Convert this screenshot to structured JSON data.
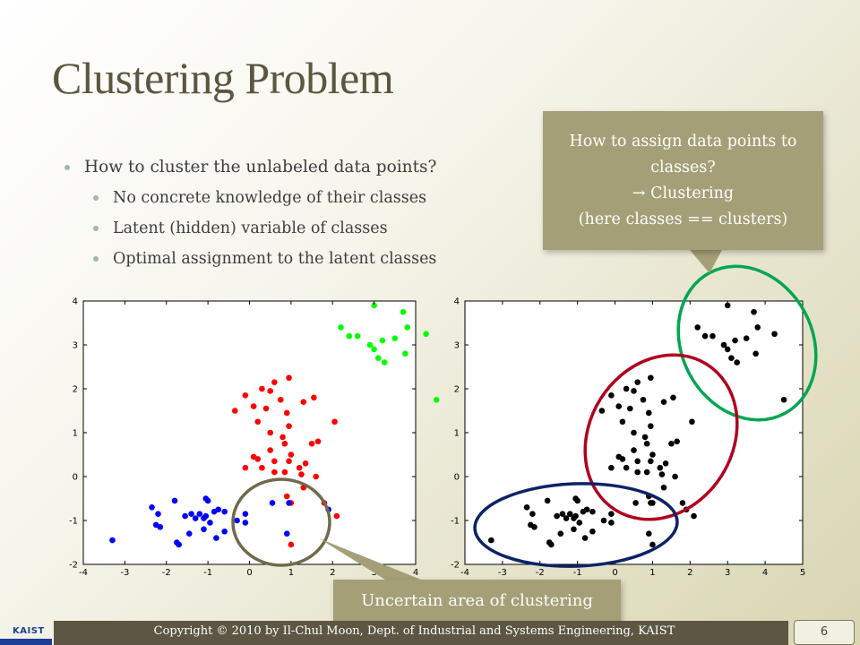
{
  "slide": {
    "title": "Clustering Problem",
    "bullets": [
      {
        "level": 1,
        "text": "How to cluster the unlabeled data points?"
      },
      {
        "level": 2,
        "text": "No concrete knowledge of their classes"
      },
      {
        "level": 2,
        "text": "Latent (hidden) variable of classes"
      },
      {
        "level": 2,
        "text": "Optimal assignment to the latent classes"
      }
    ],
    "callout_top": [
      "How to assign data points to",
      "classes?",
      "→ Clustering",
      "(here classes == clusters)"
    ],
    "callout_bottom": "Uncertain area of clustering",
    "footer": {
      "logo": "KAIST",
      "copyright": "Copyright © 2010 by Il-Chul Moon, Dept. of Industrial and Systems Engineering, KAIST",
      "page": "6"
    },
    "colors": {
      "red": "#ff0000",
      "green": "#00ff00",
      "blue": "#0000ff",
      "black": "#000000",
      "accent": "#a49f77"
    }
  },
  "chart_data": [
    {
      "type": "scatter",
      "title": "",
      "xlim": [
        -4,
        4
      ],
      "ylim": [
        -2,
        4
      ],
      "xticks": [
        -4,
        -3,
        -2,
        -1,
        0,
        1,
        2,
        3,
        4
      ],
      "yticks": [
        -2,
        -1,
        0,
        1,
        2,
        3,
        4
      ],
      "series": [
        {
          "color": "#00ff00",
          "points": [
            [
              3.0,
              3.9
            ],
            [
              3.7,
              3.75
            ],
            [
              2.2,
              3.4
            ],
            [
              2.4,
              3.2
            ],
            [
              2.6,
              3.2
            ],
            [
              2.9,
              3.0
            ],
            [
              3.0,
              2.9
            ],
            [
              3.2,
              3.1
            ],
            [
              3.5,
              3.15
            ],
            [
              3.8,
              3.4
            ],
            [
              4.25,
              3.25
            ],
            [
              3.75,
              2.8
            ],
            [
              3.1,
              2.7
            ],
            [
              3.25,
              2.6
            ],
            [
              4.5,
              1.75
            ]
          ]
        },
        {
          "color": "#ff0000",
          "points": [
            [
              0.95,
              2.25
            ],
            [
              0.6,
              2.15
            ],
            [
              0.3,
              2.0
            ],
            [
              -0.1,
              1.85
            ],
            [
              0.5,
              1.95
            ],
            [
              0.75,
              1.75
            ],
            [
              1.3,
              1.7
            ],
            [
              1.55,
              1.8
            ],
            [
              -0.35,
              1.5
            ],
            [
              0.1,
              1.6
            ],
            [
              0.4,
              1.55
            ],
            [
              0.9,
              1.45
            ],
            [
              0.2,
              1.25
            ],
            [
              0.95,
              1.15
            ],
            [
              2.05,
              1.25
            ],
            [
              0.5,
              1.0
            ],
            [
              0.8,
              0.9
            ],
            [
              0.85,
              0.75
            ],
            [
              1.5,
              0.75
            ],
            [
              1.65,
              0.8
            ],
            [
              0.5,
              0.6
            ],
            [
              1.0,
              0.5
            ],
            [
              0.1,
              0.45
            ],
            [
              0.2,
              0.4
            ],
            [
              0.6,
              0.35
            ],
            [
              0.95,
              0.35
            ],
            [
              1.35,
              0.3
            ],
            [
              -0.1,
              0.2
            ],
            [
              0.3,
              0.2
            ],
            [
              0.6,
              0.1
            ],
            [
              0.85,
              0.1
            ],
            [
              1.2,
              0.2
            ],
            [
              1.25,
              0.05
            ],
            [
              1.6,
              0.0
            ],
            [
              1.3,
              -0.25
            ],
            [
              0.9,
              -0.45
            ],
            [
              1.0,
              -0.6
            ],
            [
              1.8,
              -0.6
            ],
            [
              2.1,
              -0.9
            ],
            [
              1.0,
              -1.55
            ]
          ]
        },
        {
          "color": "#0000ff",
          "points": [
            [
              -3.3,
              -1.45
            ],
            [
              -2.35,
              -0.7
            ],
            [
              -2.2,
              -0.85
            ],
            [
              -2.25,
              -1.1
            ],
            [
              -2.15,
              -1.15
            ],
            [
              -1.8,
              -0.55
            ],
            [
              -1.55,
              -0.9
            ],
            [
              -1.4,
              -0.85
            ],
            [
              -1.3,
              -0.95
            ],
            [
              -1.2,
              -0.85
            ],
            [
              -1.1,
              -0.95
            ],
            [
              -1.05,
              -0.9
            ],
            [
              -1.05,
              -0.5
            ],
            [
              -0.95,
              -1.05
            ],
            [
              -0.85,
              -0.8
            ],
            [
              -0.75,
              -0.75
            ],
            [
              -0.6,
              -0.8
            ],
            [
              -0.1,
              -0.85
            ],
            [
              -0.6,
              -1.25
            ],
            [
              -0.8,
              -1.4
            ],
            [
              -1.1,
              -1.2
            ],
            [
              -1.45,
              -1.3
            ],
            [
              -1.75,
              -1.5
            ],
            [
              -1.7,
              -1.55
            ],
            [
              -0.1,
              -1.05
            ],
            [
              -0.3,
              -1.0
            ],
            [
              0.55,
              -0.6
            ],
            [
              0.95,
              -0.6
            ],
            [
              1.9,
              -0.75
            ],
            [
              0.9,
              -1.3
            ],
            [
              -1.0,
              -0.55
            ]
          ]
        }
      ]
    },
    {
      "type": "scatter",
      "title": "",
      "xlim": [
        -4,
        5
      ],
      "ylim": [
        -2,
        4
      ],
      "xticks": [
        -4,
        -3,
        -2,
        -1,
        0,
        1,
        2,
        3,
        4,
        5
      ],
      "yticks": [
        -2,
        -1,
        0,
        1,
        2,
        3,
        4
      ],
      "series": [
        {
          "color": "#000000",
          "points": [
            [
              3.0,
              3.9
            ],
            [
              3.7,
              3.75
            ],
            [
              2.2,
              3.4
            ],
            [
              2.4,
              3.2
            ],
            [
              2.6,
              3.2
            ],
            [
              2.9,
              3.0
            ],
            [
              3.0,
              2.9
            ],
            [
              3.2,
              3.1
            ],
            [
              3.5,
              3.15
            ],
            [
              3.8,
              3.4
            ],
            [
              4.25,
              3.25
            ],
            [
              3.75,
              2.8
            ],
            [
              3.1,
              2.7
            ],
            [
              3.25,
              2.6
            ],
            [
              4.5,
              1.75
            ],
            [
              0.95,
              2.25
            ],
            [
              0.6,
              2.15
            ],
            [
              0.3,
              2.0
            ],
            [
              -0.1,
              1.85
            ],
            [
              0.5,
              1.95
            ],
            [
              0.75,
              1.75
            ],
            [
              1.3,
              1.7
            ],
            [
              1.55,
              1.8
            ],
            [
              -0.35,
              1.5
            ],
            [
              0.1,
              1.6
            ],
            [
              0.4,
              1.55
            ],
            [
              0.9,
              1.45
            ],
            [
              0.2,
              1.25
            ],
            [
              0.95,
              1.15
            ],
            [
              2.05,
              1.25
            ],
            [
              0.5,
              1.0
            ],
            [
              0.8,
              0.9
            ],
            [
              0.85,
              0.75
            ],
            [
              1.5,
              0.75
            ],
            [
              1.65,
              0.8
            ],
            [
              0.5,
              0.6
            ],
            [
              1.0,
              0.5
            ],
            [
              0.1,
              0.45
            ],
            [
              0.2,
              0.4
            ],
            [
              0.6,
              0.35
            ],
            [
              0.95,
              0.35
            ],
            [
              1.35,
              0.3
            ],
            [
              -0.1,
              0.2
            ],
            [
              0.3,
              0.2
            ],
            [
              0.6,
              0.1
            ],
            [
              0.85,
              0.1
            ],
            [
              1.2,
              0.2
            ],
            [
              1.25,
              0.05
            ],
            [
              1.6,
              0.0
            ],
            [
              1.3,
              -0.25
            ],
            [
              0.9,
              -0.45
            ],
            [
              1.0,
              -0.6
            ],
            [
              1.8,
              -0.6
            ],
            [
              2.1,
              -0.9
            ],
            [
              1.0,
              -1.55
            ],
            [
              -3.3,
              -1.45
            ],
            [
              -2.35,
              -0.7
            ],
            [
              -2.2,
              -0.85
            ],
            [
              -2.25,
              -1.1
            ],
            [
              -2.15,
              -1.15
            ],
            [
              -1.8,
              -0.55
            ],
            [
              -1.55,
              -0.9
            ],
            [
              -1.4,
              -0.85
            ],
            [
              -1.3,
              -0.95
            ],
            [
              -1.2,
              -0.85
            ],
            [
              -1.1,
              -0.95
            ],
            [
              -1.05,
              -0.9
            ],
            [
              -1.05,
              -0.5
            ],
            [
              -0.95,
              -1.05
            ],
            [
              -0.85,
              -0.8
            ],
            [
              -0.75,
              -0.75
            ],
            [
              -0.6,
              -0.8
            ],
            [
              -0.1,
              -0.85
            ],
            [
              -0.6,
              -1.25
            ],
            [
              -0.8,
              -1.4
            ],
            [
              -1.1,
              -1.2
            ],
            [
              -1.45,
              -1.3
            ],
            [
              -1.75,
              -1.5
            ],
            [
              -1.7,
              -1.55
            ],
            [
              -0.1,
              -1.05
            ],
            [
              -0.3,
              -1.0
            ],
            [
              0.55,
              -0.6
            ],
            [
              0.95,
              -0.6
            ],
            [
              1.9,
              -0.75
            ],
            [
              0.9,
              -1.3
            ],
            [
              -1.0,
              -0.55
            ]
          ]
        }
      ]
    }
  ]
}
